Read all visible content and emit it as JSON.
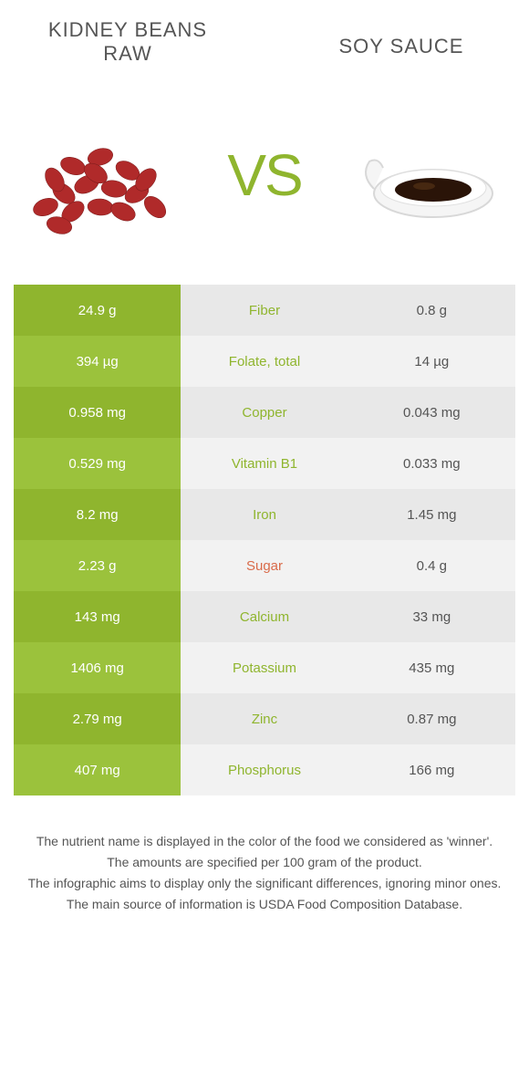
{
  "food_a": {
    "title": "Kidney beans raw"
  },
  "food_b": {
    "title": "Soy sauce"
  },
  "vs_text": "VS",
  "colors": {
    "food_a_win": "#8fb52e",
    "food_a_win_alt": "#9bc23c",
    "food_b_win": "#d96b4a",
    "neutral_bg_a": "#e8e8e8",
    "neutral_bg_b": "#f2f2f2",
    "mid_text_a": "#8fb52e",
    "mid_text_b": "#d96b4a"
  },
  "rows": [
    {
      "nutrient": "Fiber",
      "a": "24.9 g",
      "b": "0.8 g",
      "winner": "a"
    },
    {
      "nutrient": "Folate, total",
      "a": "394 µg",
      "b": "14 µg",
      "winner": "a"
    },
    {
      "nutrient": "Copper",
      "a": "0.958 mg",
      "b": "0.043 mg",
      "winner": "a"
    },
    {
      "nutrient": "Vitamin B1",
      "a": "0.529 mg",
      "b": "0.033 mg",
      "winner": "a"
    },
    {
      "nutrient": "Iron",
      "a": "8.2 mg",
      "b": "1.45 mg",
      "winner": "a"
    },
    {
      "nutrient": "Sugar",
      "a": "2.23 g",
      "b": "0.4 g",
      "winner": "b"
    },
    {
      "nutrient": "Calcium",
      "a": "143 mg",
      "b": "33 mg",
      "winner": "a"
    },
    {
      "nutrient": "Potassium",
      "a": "1406 mg",
      "b": "435 mg",
      "winner": "a"
    },
    {
      "nutrient": "Zinc",
      "a": "2.79 mg",
      "b": "0.87 mg",
      "winner": "a"
    },
    {
      "nutrient": "Phosphorus",
      "a": "407 mg",
      "b": "166 mg",
      "winner": "a"
    }
  ],
  "footer": [
    "The nutrient name is displayed in the color of the food we considered as 'winner'.",
    "The amounts are specified per 100 gram of the product.",
    "The infographic aims to display only the significant differences, ignoring minor ones.",
    "The main source of information is USDA Food Composition Database."
  ]
}
